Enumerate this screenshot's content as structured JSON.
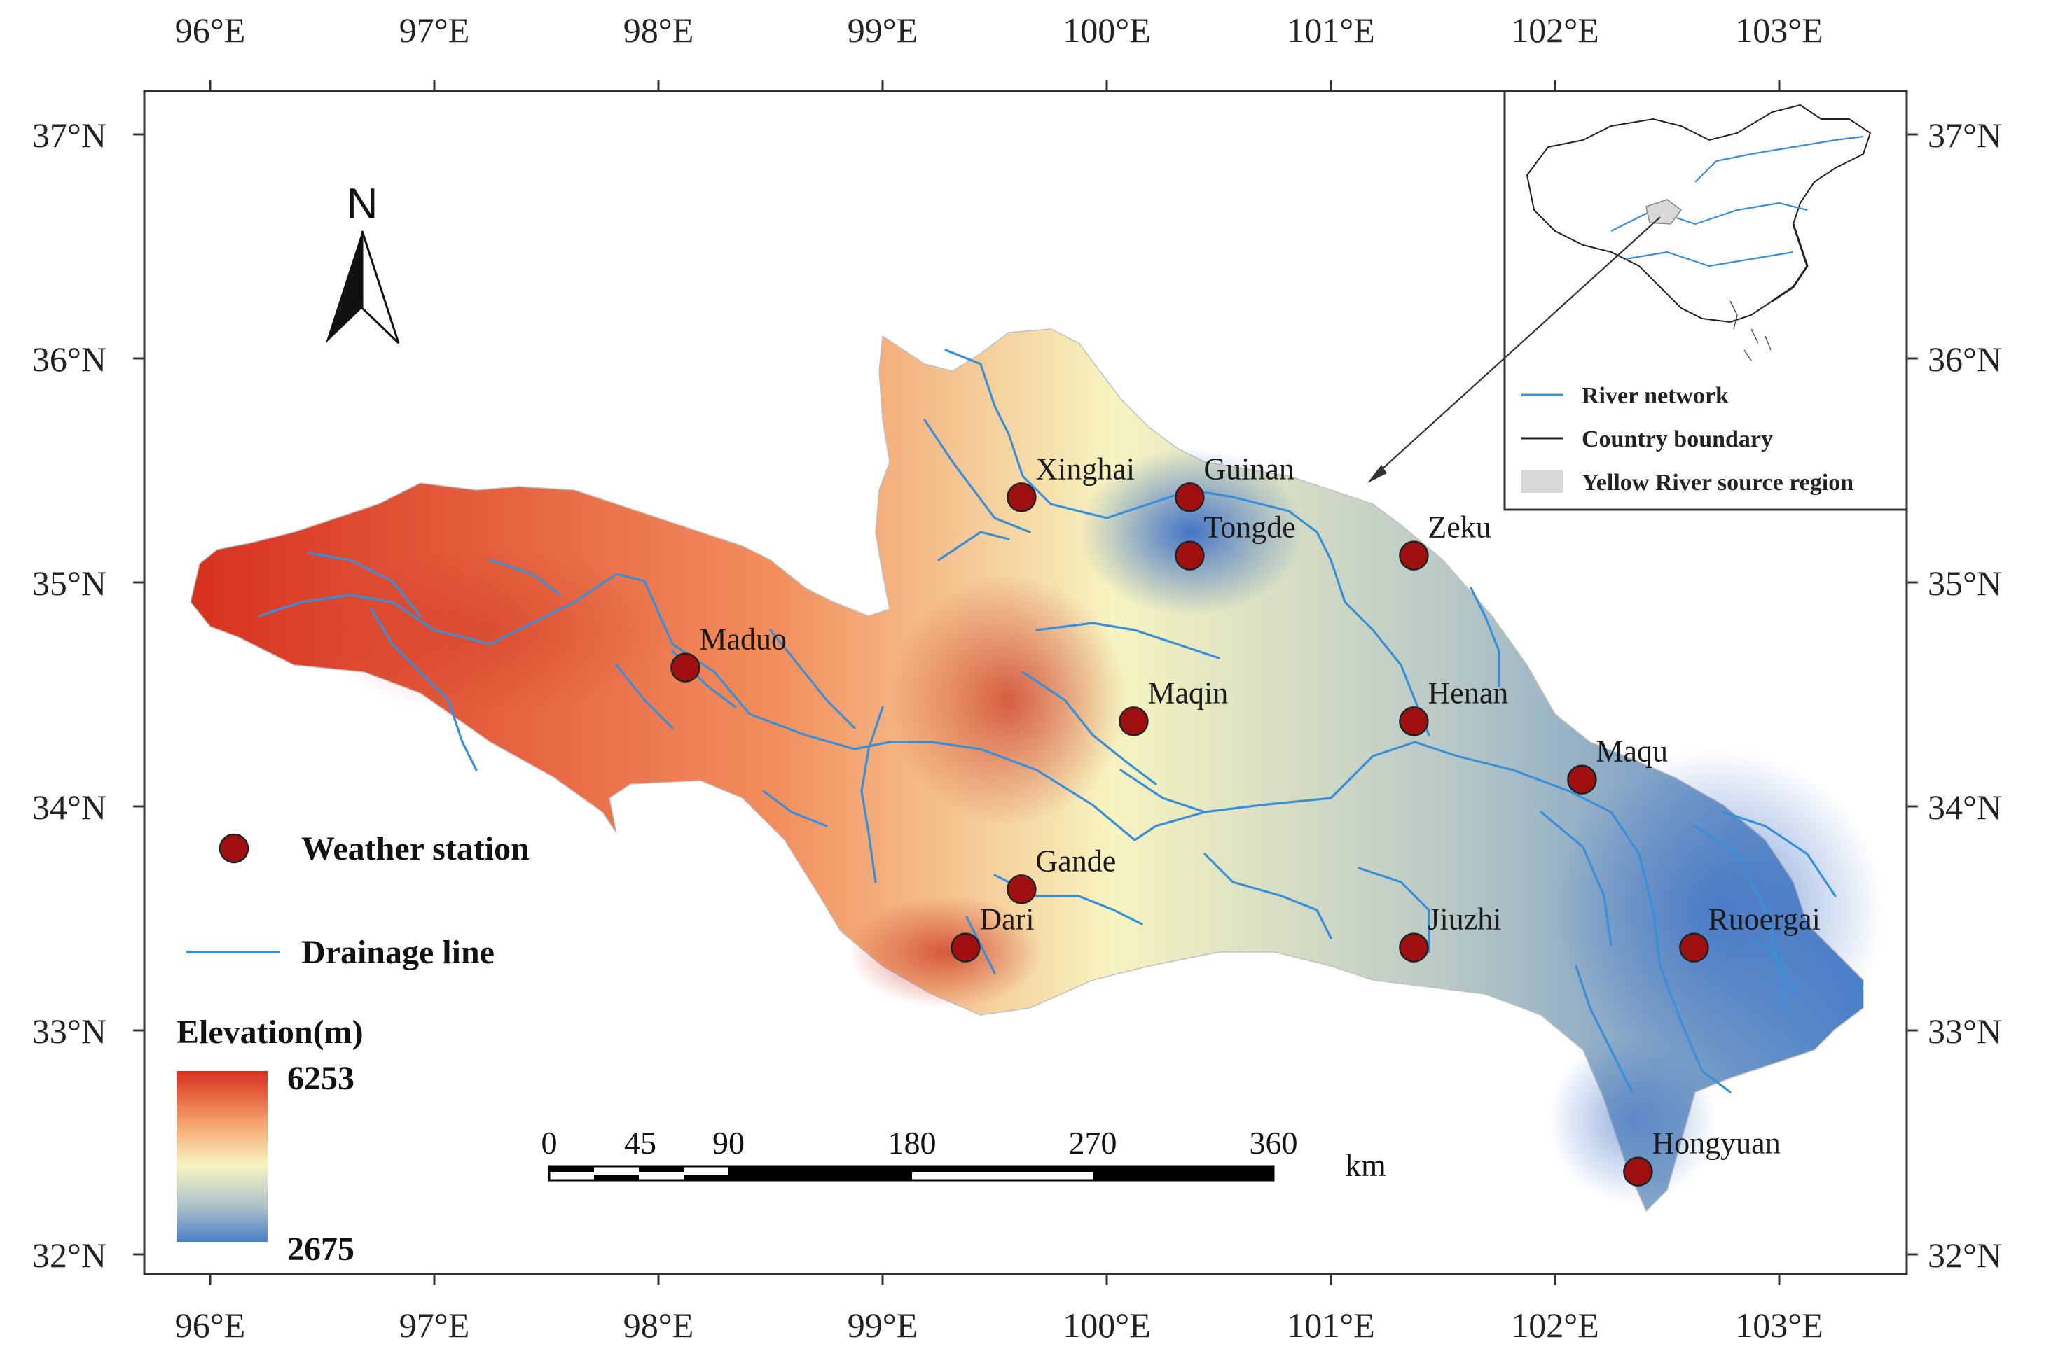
{
  "axes": {
    "lon_ticks": [
      "96°E",
      "97°E",
      "98°E",
      "99°E",
      "100°E",
      "101°E",
      "102°E",
      "103°E"
    ],
    "lat_ticks": [
      "37°N",
      "36°N",
      "35°N",
      "34°N",
      "33°N",
      "32°N"
    ]
  },
  "north_arrow": {
    "label": "N"
  },
  "stations": [
    {
      "name": "Xinghai",
      "lon": 99.62,
      "lat": 35.38
    },
    {
      "name": "Guinan",
      "lon": 100.37,
      "lat": 35.38
    },
    {
      "name": "Tongde",
      "lon": 100.37,
      "lat": 35.12
    },
    {
      "name": "Zeku",
      "lon": 101.37,
      "lat": 35.12
    },
    {
      "name": "Maduo",
      "lon": 98.12,
      "lat": 34.62
    },
    {
      "name": "Maqin",
      "lon": 100.12,
      "lat": 34.38
    },
    {
      "name": "Henan",
      "lon": 101.37,
      "lat": 34.38
    },
    {
      "name": "Maqu",
      "lon": 102.12,
      "lat": 34.12
    },
    {
      "name": "Gande",
      "lon": 99.62,
      "lat": 33.63
    },
    {
      "name": "Dari",
      "lon": 99.37,
      "lat": 33.37
    },
    {
      "name": "Jiuzhi",
      "lon": 101.37,
      "lat": 33.37
    },
    {
      "name": "Ruoergai",
      "lon": 102.62,
      "lat": 33.37
    },
    {
      "name": "Hongyuan",
      "lon": 102.37,
      "lat": 32.37
    }
  ],
  "legend": {
    "station_label": "Weather station",
    "drainage_label": "Drainage line",
    "elevation_title": "Elevation(m)",
    "elevation_max": "6253",
    "elevation_min": "2675",
    "colors": {
      "high": "#d7301f",
      "mid": "#f7f4c0",
      "low": "#5a86c4",
      "station": "#a01010",
      "drainage": "#3a8fd8"
    }
  },
  "scale_bar": {
    "ticks": [
      "0",
      "45",
      "90",
      "180",
      "270",
      "360"
    ],
    "unit": "km"
  },
  "inset": {
    "legend": [
      {
        "label": "River network"
      },
      {
        "label": "Country boundary"
      },
      {
        "label": "Yellow River source region"
      }
    ]
  }
}
